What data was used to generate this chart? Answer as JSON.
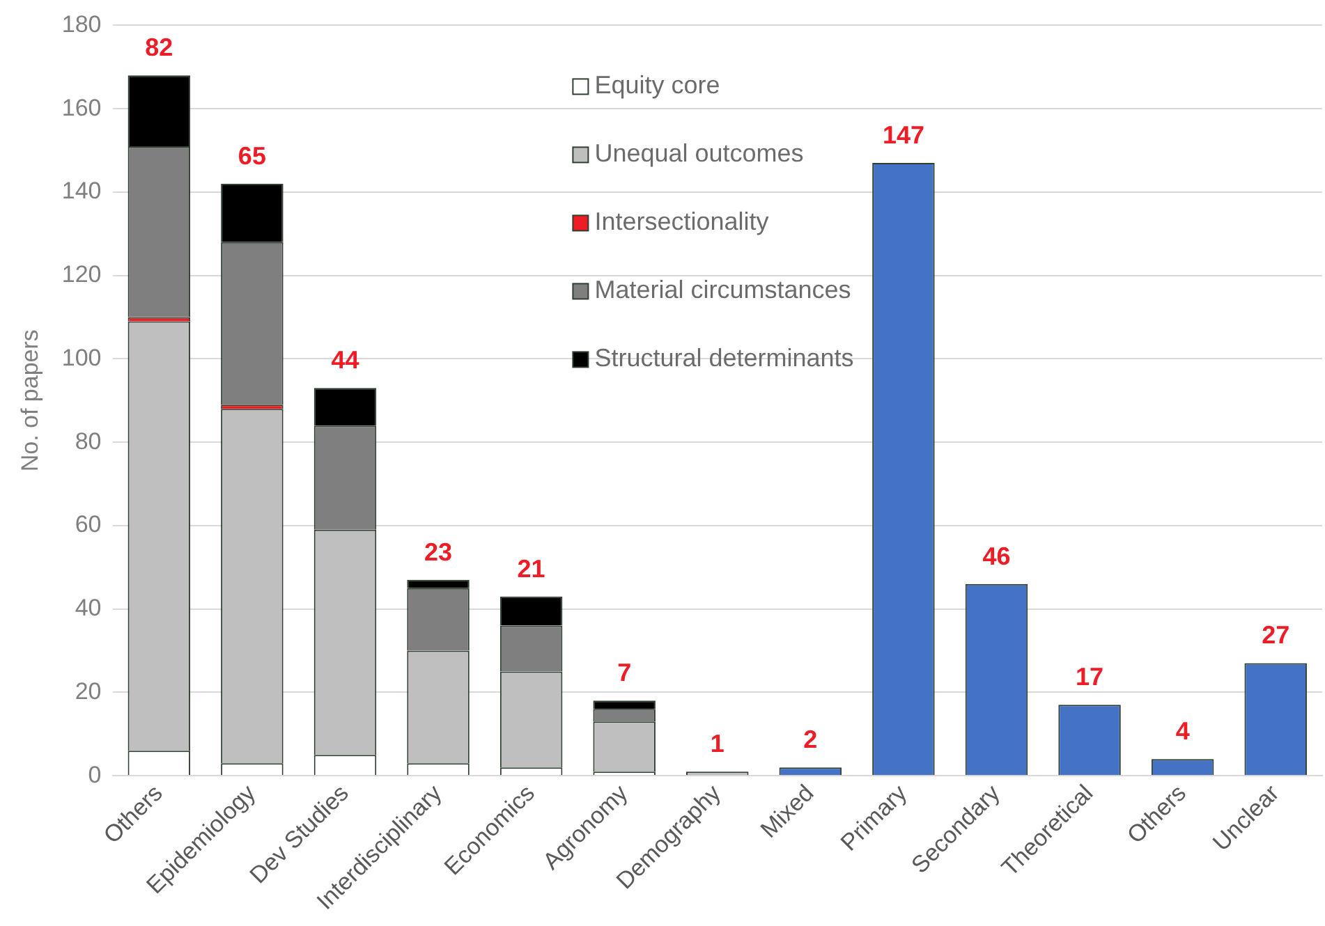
{
  "chart_data": {
    "type": "bar",
    "stacked": true,
    "ylabel": "No. of papers",
    "categories": [
      "Others",
      "Epidemiology",
      "Dev Studies",
      "Interdisciplinary",
      "Economics",
      "Agronomy",
      "Demography",
      "Mixed",
      "Primary",
      "Secondary",
      "Theoretical",
      "Others",
      "Unclear"
    ],
    "series": [
      {
        "name": "Equity core",
        "color": "#ffffff",
        "values": [
          6,
          3,
          5,
          3,
          2,
          1,
          0,
          null,
          null,
          null,
          null,
          null,
          null
        ]
      },
      {
        "name": "Unequal outcomes",
        "color": "#bfbfbf",
        "values": [
          103,
          85,
          54,
          27,
          23,
          12,
          1,
          null,
          null,
          null,
          null,
          null,
          null
        ]
      },
      {
        "name": "Intersectionality",
        "color": "#ee1c25",
        "values": [
          1,
          1,
          0,
          0,
          0,
          0,
          0,
          null,
          null,
          null,
          null,
          null,
          null
        ]
      },
      {
        "name": "Material circumstances",
        "color": "#7f7f7f",
        "values": [
          41,
          39,
          25,
          15,
          11,
          3,
          0,
          null,
          null,
          null,
          null,
          null,
          null
        ]
      },
      {
        "name": "Structural determinants",
        "color": "#000000",
        "values": [
          17,
          14,
          9,
          2,
          7,
          2,
          0,
          null,
          null,
          null,
          null,
          null,
          null
        ]
      },
      {
        "color": "#4472c4",
        "values": [
          null,
          null,
          null,
          null,
          null,
          null,
          null,
          2,
          147,
          46,
          17,
          4,
          27
        ],
        "value_labels": [
          null,
          null,
          null,
          null,
          null,
          null,
          null,
          "2",
          "147",
          "46",
          "17",
          "4",
          "27"
        ]
      }
    ],
    "annotations": [
      {
        "text": "82",
        "x": "Others",
        "y": 168
      },
      {
        "text": "65",
        "x": "Epidemiology",
        "y": 142
      },
      {
        "text": "44",
        "x": "Dev Studies",
        "y": 93
      },
      {
        "text": "23",
        "x": "Interdisciplinary",
        "y": 47
      },
      {
        "text": "21",
        "x": "Economics",
        "y": 43
      },
      {
        "text": "7",
        "x": "Agronomy",
        "y": 18
      },
      {
        "text": "1",
        "x": "Demography",
        "y": 1
      }
    ],
    "ylim": [
      0,
      180
    ],
    "yticks": [
      0,
      20,
      40,
      60,
      80,
      100,
      120,
      140,
      160,
      180
    ],
    "grid": "y",
    "legend": "top"
  }
}
